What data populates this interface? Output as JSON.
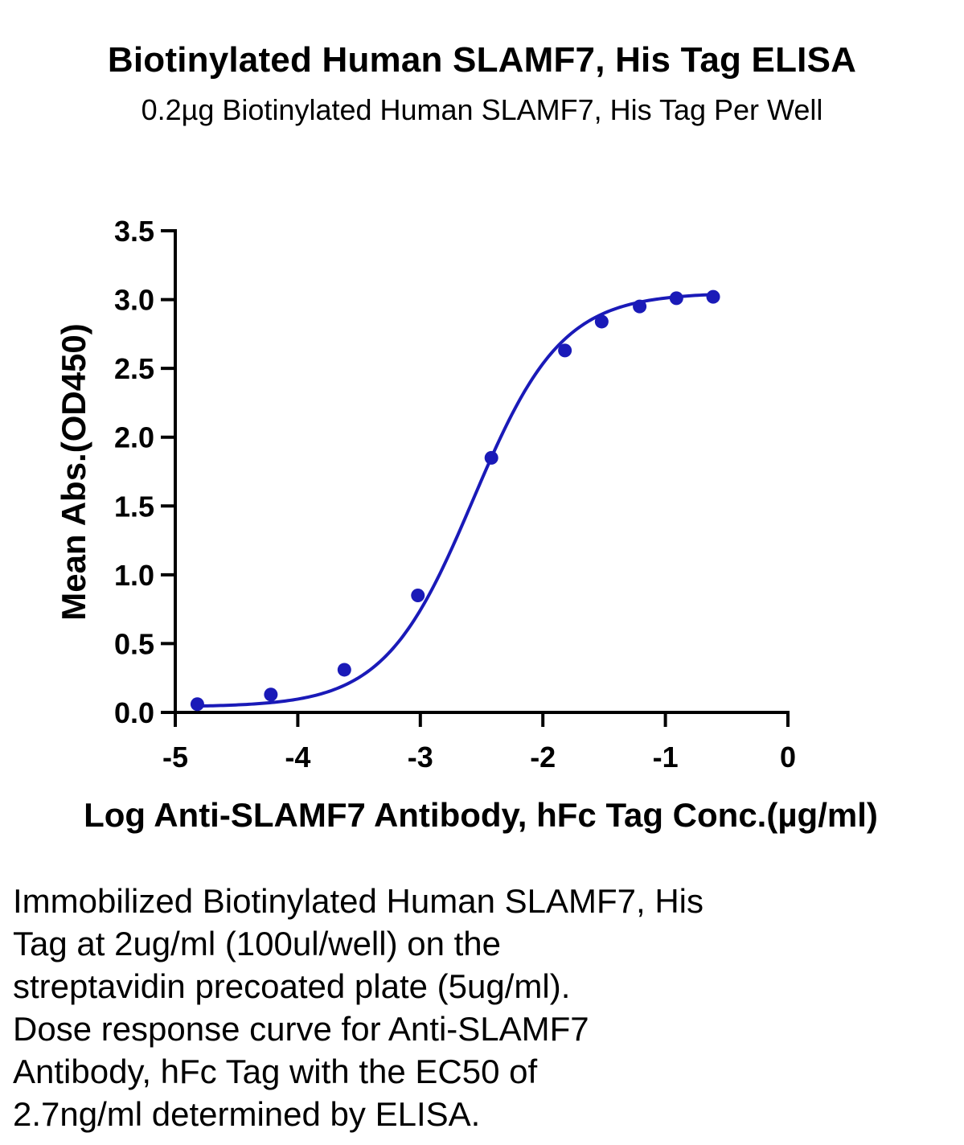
{
  "header": {
    "title": "Biotinylated Human SLAMF7, His Tag ELISA",
    "subtitle": "0.2µg Biotinylated Human SLAMF7, His Tag Per Well"
  },
  "chart_data": {
    "type": "scatter",
    "title": "Biotinylated Human SLAMF7, His Tag ELISA",
    "subtitle": "0.2µg Biotinylated Human SLAMF7, His Tag Per Well",
    "xlabel": "Log Anti-SLAMF7 Antibody, hFc Tag Conc.(µg/ml)",
    "ylabel": "Mean Abs.(OD450)",
    "xlim": [
      -5,
      0
    ],
    "ylim": [
      0,
      3.5
    ],
    "x_ticks": [
      "-5",
      "-4",
      "-3",
      "-2",
      "-1",
      "0"
    ],
    "y_ticks": [
      "0.0",
      "0.5",
      "1.0",
      "1.5",
      "2.0",
      "2.5",
      "3.0",
      "3.5"
    ],
    "grid": false,
    "legend": "none",
    "series": [
      {
        "color": "#1a1ab8",
        "points": [
          {
            "x": -4.82,
            "y": 0.06
          },
          {
            "x": -4.22,
            "y": 0.13
          },
          {
            "x": -3.62,
            "y": 0.31
          },
          {
            "x": -3.02,
            "y": 0.85
          },
          {
            "x": -2.42,
            "y": 1.85
          },
          {
            "x": -1.82,
            "y": 2.63
          },
          {
            "x": -1.52,
            "y": 2.84
          },
          {
            "x": -1.21,
            "y": 2.95
          },
          {
            "x": -0.91,
            "y": 3.01
          },
          {
            "x": -0.61,
            "y": 3.02
          }
        ],
        "fit_curve": {
          "model": "4PL",
          "bottom": 0.04,
          "top": 3.05,
          "log_ec50": -2.57,
          "hill_slope": 1.2,
          "x_range": [
            -4.82,
            -0.61
          ]
        }
      }
    ]
  },
  "caption": {
    "lines": [
      "Immobilized Biotinylated Human SLAMF7, His",
      "Tag at 2ug/ml (100ul/well) on the",
      "streptavidin precoated plate (5ug/ml).",
      "Dose response curve for Anti-SLAMF7",
      "Antibody, hFc Tag with the EC50 of",
      "2.7ng/ml determined by ELISA."
    ]
  }
}
